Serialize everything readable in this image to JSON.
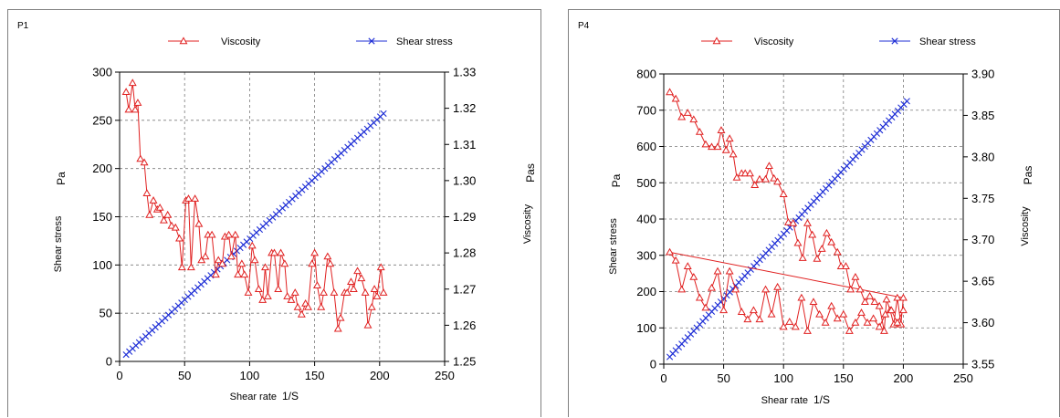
{
  "chart_data": [
    {
      "type": "line",
      "panel_label": "P1",
      "xlabel": "Shear rate",
      "xunit": "1/S",
      "ylabel_left": "Shear stress",
      "yunit_left": "Pa",
      "ylabel_right": "Viscosity",
      "yunit_right": "Pas",
      "xlim": [
        0,
        250
      ],
      "xticks": [
        0,
        50,
        100,
        150,
        200,
        250
      ],
      "ylim_left": [
        0,
        300
      ],
      "yticks_left": [
        0,
        50,
        100,
        150,
        200,
        250,
        300
      ],
      "ylim_right": [
        1.25,
        1.33
      ],
      "yticks_right": [
        "1.25",
        "1.26",
        "1.27",
        "1.28",
        "1.29",
        "1.30",
        "1.31",
        "1.32",
        "1.33"
      ],
      "grid": true,
      "legend_position": "top",
      "series": [
        {
          "name": "Viscosity",
          "axis": "right",
          "color": "#e02020",
          "marker": "triangle",
          "points": [
            [
              5,
              1.3245
            ],
            [
              7,
              1.3196
            ],
            [
              10,
              1.327
            ],
            [
              12,
              1.3196
            ],
            [
              14,
              1.3215
            ],
            [
              16,
              1.306
            ],
            [
              19,
              1.305
            ],
            [
              21,
              1.2965
            ],
            [
              23,
              1.2905
            ],
            [
              26,
              1.2945
            ],
            [
              29,
              1.292
            ],
            [
              31,
              1.2925
            ],
            [
              34,
              1.289
            ],
            [
              37,
              1.2905
            ],
            [
              40,
              1.2875
            ],
            [
              43,
              1.287
            ],
            [
              46,
              1.284
            ],
            [
              48,
              1.276
            ],
            [
              51,
              1.2945
            ],
            [
              53,
              1.295
            ],
            [
              55,
              1.276
            ],
            [
              58,
              1.295
            ],
            [
              61,
              1.288
            ],
            [
              63,
              1.278
            ],
            [
              66,
              1.279
            ],
            [
              68,
              1.285
            ],
            [
              71,
              1.285
            ],
            [
              74,
              1.274
            ],
            [
              76,
              1.278
            ],
            [
              79,
              1.277
            ],
            [
              81,
              1.2845
            ],
            [
              84,
              1.285
            ],
            [
              86,
              1.279
            ],
            [
              89,
              1.285
            ],
            [
              91,
              1.274
            ],
            [
              94,
              1.277
            ],
            [
              96,
              1.274
            ],
            [
              99,
              1.269
            ],
            [
              102,
              1.282
            ],
            [
              104,
              1.278
            ],
            [
              107,
              1.27
            ],
            [
              110,
              1.267
            ],
            [
              112,
              1.276
            ],
            [
              114,
              1.268
            ],
            [
              117,
              1.28
            ],
            [
              119,
              1.28
            ],
            [
              122,
              1.27
            ],
            [
              124,
              1.28
            ],
            [
              127,
              1.277
            ],
            [
              129,
              1.268
            ],
            [
              132,
              1.267
            ],
            [
              135,
              1.269
            ],
            [
              137,
              1.265
            ],
            [
              140,
              1.263
            ],
            [
              143,
              1.266
            ],
            [
              145,
              1.265
            ],
            [
              148,
              1.277
            ],
            [
              150,
              1.28
            ],
            [
              152,
              1.271
            ],
            [
              155,
              1.265
            ],
            [
              157,
              1.269
            ],
            [
              160,
              1.279
            ],
            [
              162,
              1.277
            ],
            [
              165,
              1.269
            ],
            [
              168,
              1.259
            ],
            [
              170,
              1.262
            ],
            [
              173,
              1.269
            ],
            [
              175,
              1.269
            ],
            [
              178,
              1.272
            ],
            [
              180,
              1.27
            ],
            [
              183,
              1.275
            ],
            [
              186,
              1.273
            ],
            [
              189,
              1.269
            ],
            [
              191,
              1.26
            ],
            [
              194,
              1.265
            ],
            [
              196,
              1.27
            ],
            [
              198,
              1.268
            ],
            [
              201,
              1.276
            ],
            [
              203,
              1.269
            ]
          ]
        },
        {
          "name": "Shear stress",
          "axis": "left",
          "color": "#1f2fd6",
          "marker": "x",
          "x": [
            5,
            203
          ],
          "y": [
            7,
            257
          ],
          "num_points": 80
        }
      ]
    },
    {
      "type": "line",
      "panel_label": "P4",
      "xlabel": "Shear rate",
      "xunit": "1/S",
      "ylabel_left": "Shear stress",
      "yunit_left": "Pa",
      "ylabel_right": "Viscosity",
      "yunit_right": "Pas",
      "xlim": [
        0,
        250
      ],
      "xticks": [
        0,
        50,
        100,
        150,
        200,
        250
      ],
      "ylim_left": [
        0,
        800
      ],
      "yticks_left": [
        0,
        100,
        200,
        300,
        400,
        500,
        600,
        700,
        800
      ],
      "ylim_right": [
        3.55,
        3.9
      ],
      "yticks_right": [
        "3.55",
        "3.60",
        "3.65",
        "3.70",
        "3.75",
        "3.80",
        "3.85",
        "3.90"
      ],
      "grid": true,
      "legend_position": "top",
      "series": [
        {
          "name": "Viscosity",
          "axis": "right",
          "color": "#e02020",
          "marker": "triangle",
          "points": [
            [
              5,
              3.878
            ],
            [
              10,
              3.87
            ],
            [
              15,
              3.848
            ],
            [
              20,
              3.853
            ],
            [
              25,
              3.845
            ],
            [
              30,
              3.83
            ],
            [
              35,
              3.815
            ],
            [
              40,
              3.812
            ],
            [
              45,
              3.812
            ],
            [
              48,
              3.832
            ],
            [
              52,
              3.808
            ],
            [
              55,
              3.822
            ],
            [
              58,
              3.803
            ],
            [
              61,
              3.775
            ],
            [
              65,
              3.78
            ],
            [
              68,
              3.78
            ],
            [
              72,
              3.78
            ],
            [
              76,
              3.766
            ],
            [
              80,
              3.773
            ],
            [
              85,
              3.773
            ],
            [
              88,
              3.789
            ],
            [
              92,
              3.774
            ],
            [
              95,
              3.77
            ],
            [
              100,
              3.755
            ],
            [
              104,
              3.721
            ],
            [
              108,
              3.72
            ],
            [
              112,
              3.696
            ],
            [
              116,
              3.678
            ],
            [
              120,
              3.72
            ],
            [
              124,
              3.706
            ],
            [
              128,
              3.677
            ],
            [
              132,
              3.689
            ],
            [
              136,
              3.708
            ],
            [
              140,
              3.697
            ],
            [
              145,
              3.685
            ],
            [
              148,
              3.668
            ],
            [
              152,
              3.668
            ],
            [
              156,
              3.64
            ],
            [
              160,
              3.655
            ],
            [
              164,
              3.64
            ],
            [
              168,
              3.625
            ],
            [
              172,
              3.632
            ],
            [
              176,
              3.625
            ],
            [
              180,
              3.62
            ],
            [
              184,
              3.59
            ],
            [
              186,
              3.628
            ],
            [
              189,
              3.615
            ],
            [
              192,
              3.598
            ],
            [
              195,
              3.63
            ],
            [
              198,
              3.598
            ],
            [
              200,
              3.63
            ],
            [
              5,
              3.685
            ],
            [
              10,
              3.675
            ],
            [
              15,
              3.64
            ],
            [
              20,
              3.668
            ],
            [
              25,
              3.655
            ],
            [
              30,
              3.63
            ],
            [
              35,
              3.618
            ],
            [
              40,
              3.642
            ],
            [
              45,
              3.662
            ],
            [
              50,
              3.615
            ],
            [
              55,
              3.662
            ],
            [
              60,
              3.64
            ],
            [
              65,
              3.613
            ],
            [
              70,
              3.604
            ],
            [
              75,
              3.615
            ],
            [
              80,
              3.604
            ],
            [
              85,
              3.64
            ],
            [
              90,
              3.61
            ],
            [
              95,
              3.643
            ],
            [
              100,
              3.595
            ],
            [
              105,
              3.601
            ],
            [
              110,
              3.595
            ],
            [
              115,
              3.63
            ],
            [
              120,
              3.59
            ],
            [
              125,
              3.625
            ],
            [
              130,
              3.61
            ],
            [
              135,
              3.6
            ],
            [
              140,
              3.62
            ],
            [
              145,
              3.605
            ],
            [
              150,
              3.61
            ],
            [
              155,
              3.59
            ],
            [
              160,
              3.6
            ],
            [
              165,
              3.612
            ],
            [
              170,
              3.6
            ],
            [
              175,
              3.605
            ],
            [
              180,
              3.595
            ],
            [
              185,
              3.61
            ],
            [
              190,
              3.615
            ],
            [
              195,
              3.6
            ],
            [
              200,
              3.615
            ]
          ]
        },
        {
          "name": "Shear stress",
          "axis": "left",
          "color": "#1f2fd6",
          "marker": "x",
          "x": [
            5,
            203
          ],
          "y": [
            20,
            725
          ],
          "num_points": 80
        }
      ]
    }
  ]
}
